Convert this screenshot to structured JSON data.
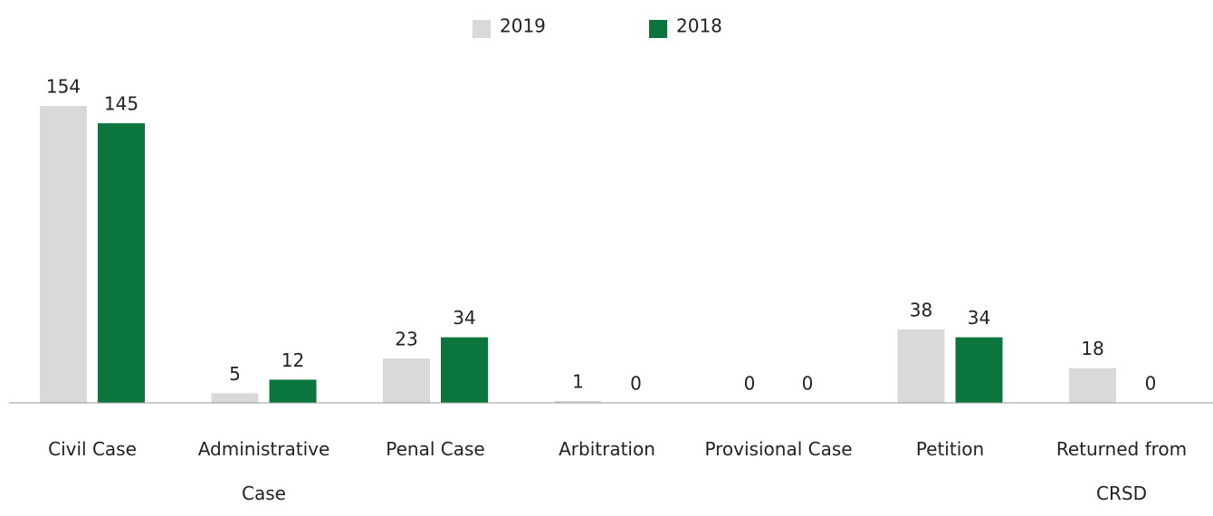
{
  "chart_data": {
    "type": "bar",
    "categories": [
      "Civil Case",
      "Administrative Case",
      "Penal Case",
      "Arbitration",
      "Provisional Case",
      "Petition",
      "Returned from CRSD"
    ],
    "series": [
      {
        "name": "2019",
        "color": "#d9d9d9",
        "values": [
          154,
          5,
          23,
          1,
          0,
          38,
          18
        ]
      },
      {
        "name": "2018",
        "color": "#0a753c",
        "values": [
          145,
          12,
          34,
          0,
          0,
          34,
          0
        ]
      }
    ],
    "legend": "top"
  }
}
